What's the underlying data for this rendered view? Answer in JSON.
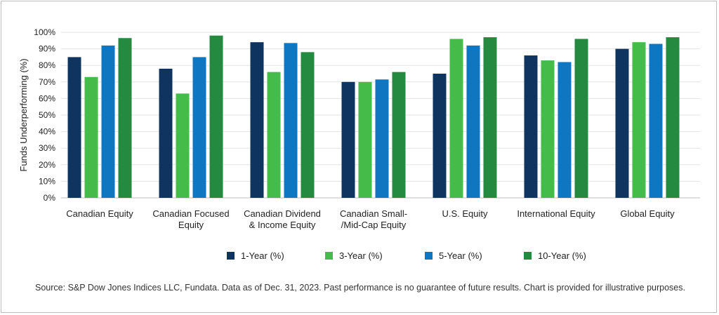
{
  "chart_data": {
    "type": "bar",
    "ylabel": "Funds Underperforming (%)",
    "ylim": [
      0,
      100
    ],
    "y_ticks": [
      "0%",
      "10%",
      "20%",
      "30%",
      "40%",
      "50%",
      "60%",
      "70%",
      "80%",
      "90%",
      "100%"
    ],
    "grid": true,
    "legend_position": "bottom",
    "categories": [
      [
        "Canadian Equity"
      ],
      [
        "Canadian Focused",
        "Equity"
      ],
      [
        "Canadian Dividend",
        "& Income Equity"
      ],
      [
        "Canadian Small-",
        "/Mid-Cap Equity"
      ],
      [
        "U.S. Equity"
      ],
      [
        "International Equity"
      ],
      [
        "Global Equity"
      ]
    ],
    "series": [
      {
        "name": "1-Year (%)",
        "color": "#0f3460",
        "values": [
          85,
          78,
          94,
          70,
          75,
          86,
          90
        ]
      },
      {
        "name": "3-Year (%)",
        "color": "#45bb4a",
        "values": [
          73,
          63,
          76,
          70,
          96,
          83,
          94
        ]
      },
      {
        "name": "5-Year (%)",
        "color": "#0f76c1",
        "values": [
          92,
          85,
          93.5,
          71.5,
          92,
          82,
          93
        ]
      },
      {
        "name": "10-Year (%)",
        "color": "#238a40",
        "values": [
          96.5,
          98,
          88,
          76,
          97,
          96,
          97
        ]
      }
    ]
  },
  "source": "Source: S&P Dow Jones Indices LLC, Fundata. Data as of Dec. 31, 2023. Past performance is no guarantee of future results. Chart is provided for illustrative purposes."
}
